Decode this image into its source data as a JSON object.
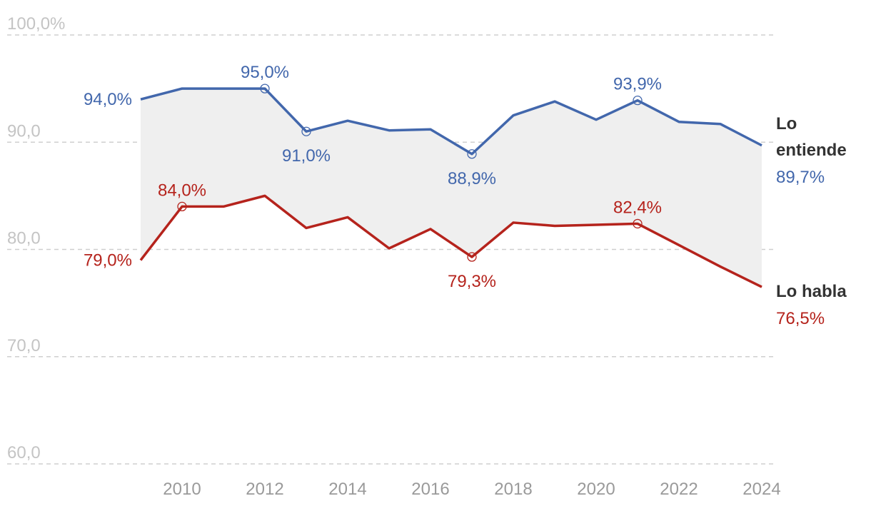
{
  "chart_data": {
    "type": "line",
    "ylim": [
      60,
      100
    ],
    "xlim": [
      2009,
      2024
    ],
    "y_ticks": [
      {
        "value": 100,
        "label": "100,0%"
      },
      {
        "value": 90,
        "label": "90,0"
      },
      {
        "value": 80,
        "label": "80,0"
      },
      {
        "value": 70,
        "label": "70,0"
      },
      {
        "value": 60,
        "label": "60,0"
      }
    ],
    "x_ticks": [
      "2010",
      "2012",
      "2014",
      "2016",
      "2018",
      "2020",
      "2022",
      "2024"
    ],
    "grid": true,
    "area_between_series": true,
    "colors": {
      "area": "#efefef",
      "entiende": "#4267ac",
      "habla": "#b5231c",
      "grid": "#cfcfcf"
    },
    "series": [
      {
        "key": "entiende",
        "name_lines": [
          "Lo",
          "entiende"
        ],
        "end_label": "89,7%",
        "color": "#4267ac",
        "x": [
          2009,
          2010,
          2011,
          2012,
          2013,
          2014,
          2015,
          2016,
          2017,
          2018,
          2019,
          2020,
          2021,
          2022,
          2023,
          2024
        ],
        "y": [
          94.0,
          95.0,
          95.0,
          95.0,
          91.0,
          92.0,
          91.1,
          91.2,
          88.9,
          92.5,
          93.8,
          92.1,
          93.9,
          91.9,
          91.7,
          89.7
        ],
        "annotations": [
          {
            "x": 2009,
            "y": 94.0,
            "label": "94,0%",
            "pos": "left",
            "marker": false
          },
          {
            "x": 2012,
            "y": 95.0,
            "label": "95,0%",
            "pos": "above",
            "marker": true
          },
          {
            "x": 2013,
            "y": 91.0,
            "label": "91,0%",
            "pos": "below",
            "marker": true
          },
          {
            "x": 2017,
            "y": 88.9,
            "label": "88,9%",
            "pos": "below",
            "marker": true
          },
          {
            "x": 2021,
            "y": 93.9,
            "label": "93,9%",
            "pos": "above",
            "marker": true
          }
        ]
      },
      {
        "key": "habla",
        "name_lines": [
          "Lo habla"
        ],
        "end_label": "76,5%",
        "color": "#b5231c",
        "x": [
          2009,
          2010,
          2011,
          2012,
          2013,
          2014,
          2015,
          2016,
          2017,
          2018,
          2019,
          2020,
          2021,
          2022,
          2023,
          2024
        ],
        "y": [
          79.0,
          84.0,
          84.0,
          85.0,
          82.0,
          83.0,
          80.1,
          81.9,
          79.3,
          82.5,
          82.2,
          82.3,
          82.4,
          80.4,
          78.4,
          76.5
        ],
        "annotations": [
          {
            "x": 2009,
            "y": 79.0,
            "label": "79,0%",
            "pos": "left",
            "marker": false
          },
          {
            "x": 2010,
            "y": 84.0,
            "label": "84,0%",
            "pos": "above",
            "marker": true
          },
          {
            "x": 2017,
            "y": 79.3,
            "label": "79,3%",
            "pos": "below",
            "marker": true
          },
          {
            "x": 2021,
            "y": 82.4,
            "label": "82,4%",
            "pos": "above",
            "marker": true
          }
        ]
      }
    ]
  }
}
